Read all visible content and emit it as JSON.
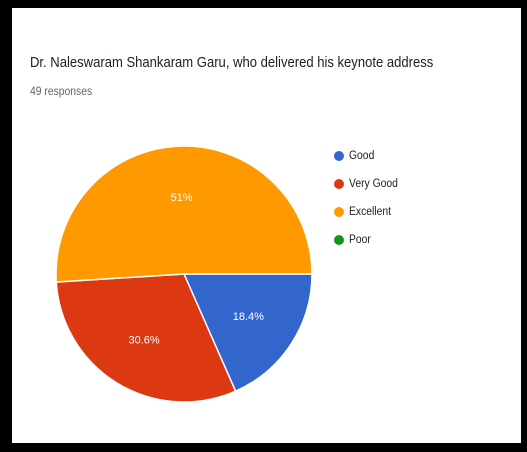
{
  "header": {
    "title": "Dr. Naleswaram Shankaram Garu, who delivered his keynote address",
    "responses": "49 responses"
  },
  "colors": {
    "good": "#3366cc",
    "very_good": "#dc3912",
    "excellent": "#ff9900",
    "poor": "#109618"
  },
  "chart_data": {
    "type": "pie",
    "title": "Dr. Naleswaram Shankaram Garu, who delivered his keynote address",
    "subtitle": "49 responses",
    "slices": [
      {
        "name": "Good",
        "value": 18.4,
        "label": "18.4%",
        "color": "#3366cc"
      },
      {
        "name": "Very Good",
        "value": 30.6,
        "label": "30.6%",
        "color": "#dc3912"
      },
      {
        "name": "Excellent",
        "value": 51,
        "label": "51%",
        "color": "#ff9900"
      },
      {
        "name": "Poor",
        "value": 0,
        "label": "",
        "color": "#109618"
      }
    ],
    "legend": {
      "position": "right"
    }
  },
  "legend": {
    "items": [
      {
        "label": "Good",
        "color": "#3366cc"
      },
      {
        "label": "Very Good",
        "color": "#dc3912"
      },
      {
        "label": "Excellent",
        "color": "#ff9900"
      },
      {
        "label": "Poor",
        "color": "#109618"
      }
    ]
  }
}
